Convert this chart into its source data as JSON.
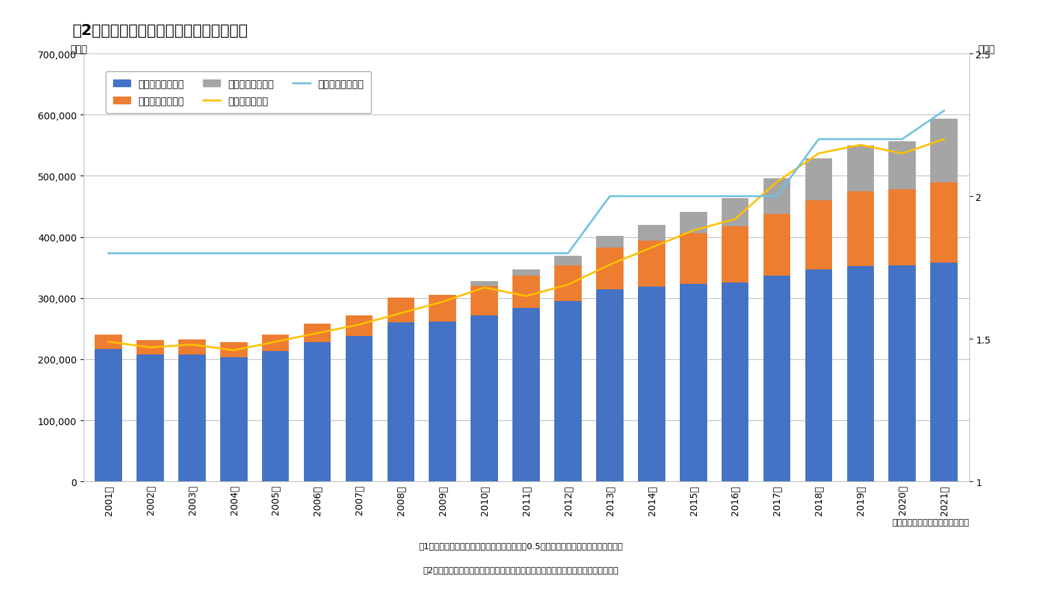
{
  "title": "図2：民間企業における障害者の雇用状況",
  "years": [
    "2001年",
    "2002年",
    "2003年",
    "2004年",
    "2005年",
    "2006年",
    "2007年",
    "2008年",
    "2009年",
    "2010年",
    "2011年",
    "2012年",
    "2013年",
    "2014年",
    "2015年",
    "2016年",
    "2017年",
    "2018年",
    "2019年",
    "2020年",
    "2021年"
  ],
  "shintai": [
    216200,
    207600,
    207800,
    203000,
    213500,
    228200,
    237600,
    260900,
    262100,
    271600,
    284300,
    295200,
    314300,
    319000,
    323000,
    326000,
    337000,
    346500,
    352000,
    354000,
    357800
  ],
  "chiteki": [
    24300,
    24200,
    24400,
    24800,
    26800,
    30200,
    33800,
    40400,
    43000,
    47800,
    52600,
    58700,
    68600,
    75200,
    83000,
    91000,
    101000,
    114000,
    123000,
    124000,
    132000
  ],
  "seishin": [
    0,
    0,
    0,
    0,
    0,
    0,
    0,
    0,
    0,
    8000,
    10000,
    15000,
    19000,
    25000,
    35000,
    47000,
    58000,
    68000,
    75000,
    78000,
    104000
  ],
  "jisseki_rate": [
    1.49,
    1.47,
    1.48,
    1.46,
    1.49,
    1.52,
    1.55,
    1.59,
    1.63,
    1.68,
    1.65,
    1.69,
    1.76,
    1.82,
    1.88,
    1.92,
    2.05,
    2.15,
    2.18,
    2.15,
    2.2
  ],
  "houtei_rate": [
    1.8,
    1.8,
    1.8,
    1.8,
    1.8,
    1.8,
    1.8,
    1.8,
    1.8,
    1.8,
    1.8,
    1.8,
    2.0,
    2.0,
    2.0,
    2.0,
    2.0,
    2.2,
    2.2,
    2.2,
    2.3
  ],
  "bar_color_shintai": "#4472C4",
  "bar_color_chiteki": "#ED7D31",
  "bar_color_seishin": "#A5A5A5",
  "line_color_jisseki": "#FFC000",
  "line_color_houtei": "#70C1E0",
  "ylim_left": [
    0,
    700000
  ],
  "ylim_right": [
    1.0,
    2.5
  ],
  "ylabel_left": "（人）",
  "ylabel_right": "（％）",
  "legend_labels": [
    "身体障害者（人）",
    "知的障害者（人）",
    "精神障害者（人）",
    "実雇用率（％）",
    "法定雇用率（％）"
  ],
  "source_text": "出典：厚生労働省資料を基に作成",
  "note1": "注1：重度者をダブルカウント、短期労働者を0.5人で計算するなどのルールがある。",
  "note2": "注2：障害者数の集計方法、雇用義務が掛かる企業の規模は途中で変更されている。",
  "background_color": "#FFFFFF",
  "grid_color": "#C0C0C0",
  "title_fontsize": 16,
  "tick_fontsize": 10,
  "legend_fontsize": 10
}
